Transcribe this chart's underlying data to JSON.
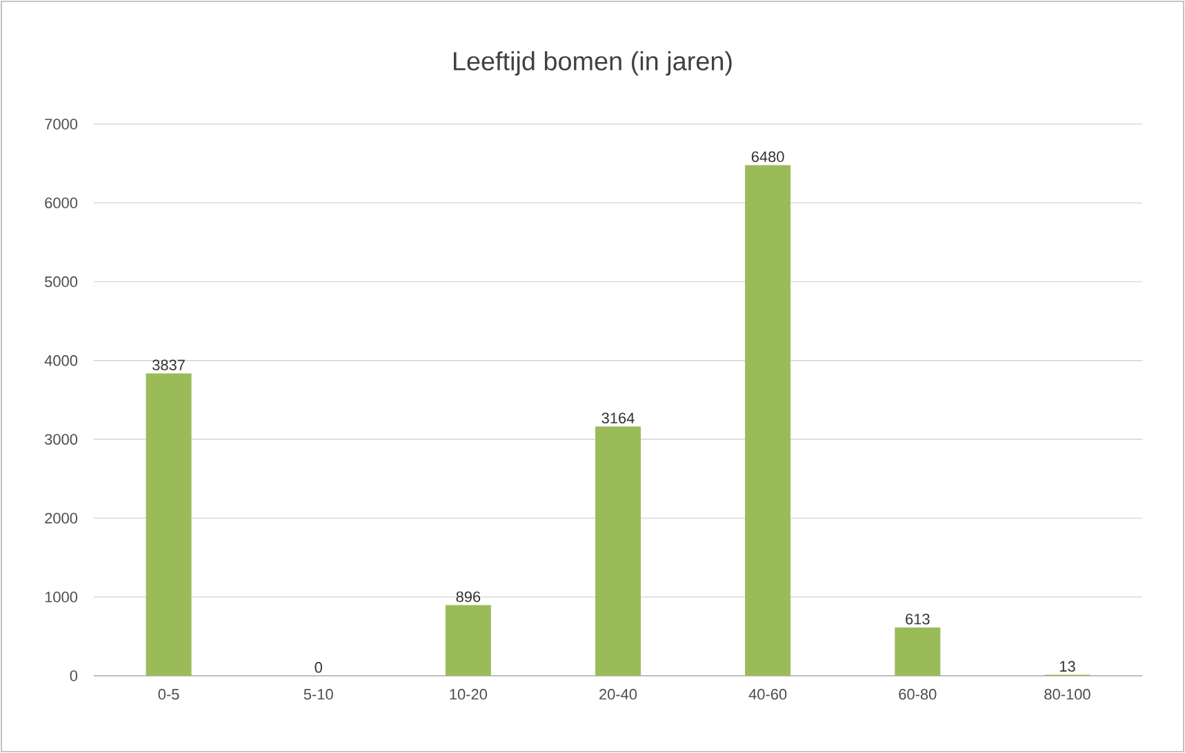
{
  "chart_data": {
    "type": "bar",
    "title": "Leeftijd bomen (in jaren)",
    "categories": [
      "0-5",
      "5-10",
      "10-20",
      "20-40",
      "40-60",
      "60-80",
      "80-100"
    ],
    "values": [
      3837,
      0,
      896,
      3164,
      6480,
      613,
      13
    ],
    "color": "#9bbb59",
    "ylim": [
      0,
      7000
    ],
    "yticks": [
      0,
      1000,
      2000,
      3000,
      4000,
      5000,
      6000,
      7000
    ],
    "grid": "y",
    "data_labels": true
  }
}
